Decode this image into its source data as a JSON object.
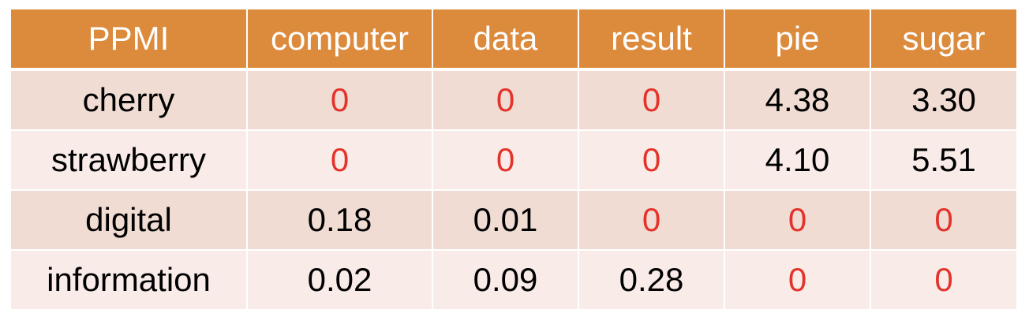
{
  "table": {
    "corner_label": "PPMI",
    "columns": [
      "computer",
      "data",
      "result",
      "pie",
      "sugar"
    ],
    "rows": [
      {
        "label": "cherry",
        "values": [
          "0",
          "0",
          "0",
          "4.38",
          "3.30"
        ]
      },
      {
        "label": "strawberry",
        "values": [
          "0",
          "0",
          "0",
          "4.10",
          "5.51"
        ]
      },
      {
        "label": "digital",
        "values": [
          "0.18",
          "0.01",
          "0",
          "0",
          "0"
        ]
      },
      {
        "label": "information",
        "values": [
          "0.02",
          "0.09",
          "0.28",
          "0",
          "0"
        ]
      }
    ]
  },
  "colors": {
    "header_bg": "#dc8a3c",
    "header_text": "#ffffff",
    "row_odd_bg": "#f0dcd3",
    "row_even_bg": "#f8ebe8",
    "zero_text": "#e4332b",
    "value_text": "#000000"
  }
}
